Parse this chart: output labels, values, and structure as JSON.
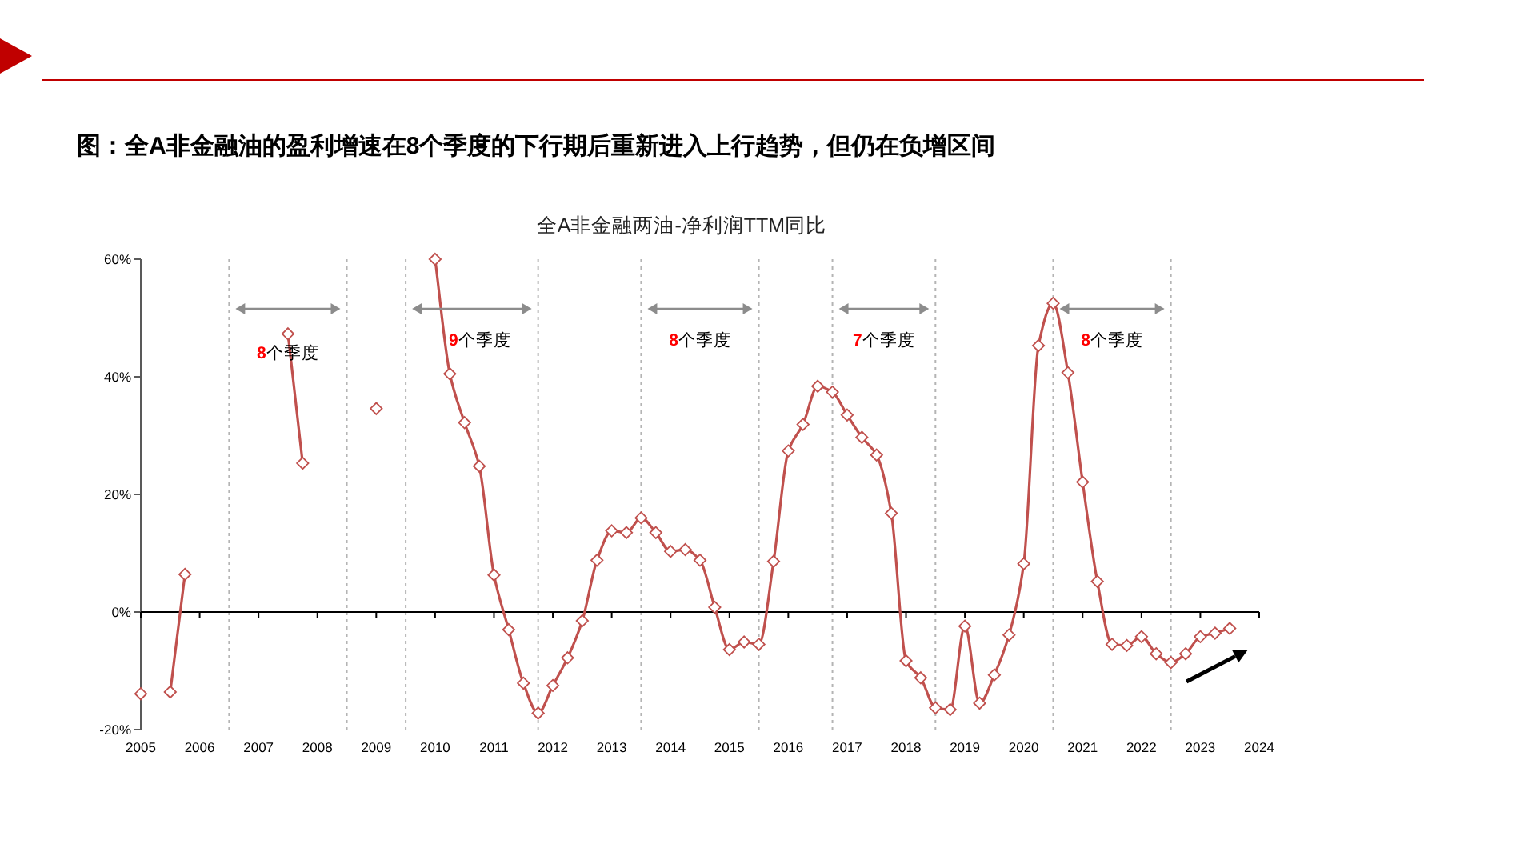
{
  "chart_data": {
    "type": "line",
    "title": "图：全A非金融油的盈利增速在8个季度的下行期后重新进入上行趋势，但仍在负增区间",
    "subtitle": "全A非金融两油-净利润TTM同比",
    "series": [
      {
        "color": "#c0504d",
        "x": [
          2005
        ],
        "values": [
          -13.9
        ]
      },
      {
        "color": "#c0504d",
        "x": [
          2005.5,
          2005.75
        ],
        "values": [
          -13.6,
          6.4
        ]
      },
      {
        "color": "#c0504d",
        "x": [
          2007.5,
          2007.75
        ],
        "values": [
          47.3,
          25.3
        ]
      },
      {
        "color": "#c0504d",
        "x": [
          2009
        ],
        "values": [
          34.6
        ]
      },
      {
        "color": "#c0504d",
        "x": [
          2010,
          2010.25,
          2010.5,
          2010.75,
          2011,
          2011.25,
          2011.5,
          2011.75,
          2012,
          2012.25,
          2012.5,
          2012.75,
          2013,
          2013.25,
          2013.5,
          2013.75,
          2014,
          2014.25,
          2014.5,
          2014.75,
          2015,
          2015.25,
          2015.5,
          2015.75,
          2016,
          2016.25,
          2016.5,
          2016.75,
          2017,
          2017.25,
          2017.5,
          2017.75,
          2018,
          2018.25,
          2018.5,
          2018.75,
          2019,
          2019.25,
          2019.5,
          2019.75,
          2020,
          2020.25,
          2020.5,
          2020.75,
          2021,
          2021.25,
          2021.5,
          2021.75,
          2022,
          2022.25,
          2022.5,
          2022.75,
          2023,
          2023.25,
          2023.5
        ],
        "values": [
          60.0,
          40.5,
          32.2,
          24.8,
          6.3,
          -3.0,
          -12.1,
          -17.2,
          -12.5,
          -7.8,
          -1.5,
          8.8,
          13.8,
          13.5,
          16.0,
          13.5,
          10.3,
          10.6,
          8.8,
          0.8,
          -6.4,
          -5.1,
          -5.5,
          8.6,
          27.4,
          31.9,
          38.4,
          37.4,
          33.5,
          29.7,
          26.7,
          16.8,
          -8.3,
          -11.2,
          -16.3,
          -16.6,
          -2.4,
          -15.5,
          -10.7,
          -3.9,
          8.2,
          45.3,
          52.5,
          40.7,
          22.1,
          5.2,
          -5.5,
          -5.7,
          -4.2,
          -7.1,
          -8.6,
          -7.1,
          -4.2,
          -3.6,
          -2.8
        ]
      }
    ],
    "marker": "diamond",
    "line_style": "solid",
    "xlim": [
      2005,
      2024
    ],
    "xticks": [
      2005,
      2006,
      2007,
      2008,
      2009,
      2010,
      2011,
      2012,
      2013,
      2014,
      2015,
      2016,
      2017,
      2018,
      2019,
      2020,
      2021,
      2022,
      2023,
      2024
    ],
    "ylim": [
      -20,
      60
    ],
    "yticks": [
      {
        "value": -20,
        "label": "-20%"
      },
      {
        "value": 0,
        "label": "0%"
      },
      {
        "value": 20,
        "label": "20%"
      },
      {
        "value": 40,
        "label": "40%"
      },
      {
        "value": 60,
        "label": "60%"
      }
    ],
    "ref_lines": [
      {
        "axis": "x",
        "value": 2006.5,
        "color": "#b4b4b4",
        "line_style": "dotted"
      },
      {
        "axis": "x",
        "value": 2008.5,
        "color": "#b4b4b4",
        "line_style": "dotted"
      },
      {
        "axis": "x",
        "value": 2009.5,
        "color": "#b4b4b4",
        "line_style": "dotted"
      },
      {
        "axis": "x",
        "value": 2011.75,
        "color": "#b4b4b4",
        "line_style": "dotted"
      },
      {
        "axis": "x",
        "value": 2013.5,
        "color": "#b4b4b4",
        "line_style": "dotted"
      },
      {
        "axis": "x",
        "value": 2015.5,
        "color": "#b4b4b4",
        "line_style": "dotted"
      },
      {
        "axis": "x",
        "value": 2016.75,
        "color": "#b4b4b4",
        "line_style": "dotted"
      },
      {
        "axis": "x",
        "value": 2018.5,
        "color": "#b4b4b4",
        "line_style": "dotted"
      },
      {
        "axis": "x",
        "value": 2020.5,
        "color": "#b4b4b4",
        "line_style": "dotted"
      },
      {
        "axis": "x",
        "value": 2022.5,
        "color": "#b4b4b4",
        "line_style": "dotted"
      }
    ],
    "annotations": [
      "8个季度",
      "9个季度",
      "8个季度",
      "7个季度",
      "8个季度"
    ]
  }
}
